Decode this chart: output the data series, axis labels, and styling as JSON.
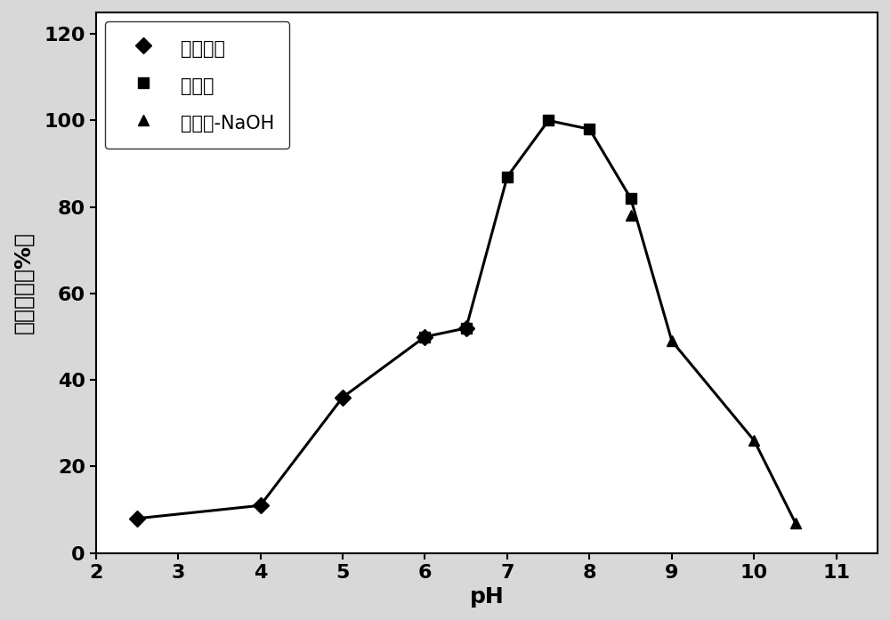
{
  "series": [
    {
      "label": "柠橜酸鉡",
      "x": [
        2.5,
        4.0,
        5.0,
        6.0,
        6.5
      ],
      "y": [
        8,
        11,
        36,
        50,
        52
      ],
      "marker": "D",
      "markersize": 9
    },
    {
      "label": "磷酸鉡",
      "x": [
        6.0,
        6.5,
        7.0,
        7.5,
        8.0,
        8.5
      ],
      "y": [
        50,
        52,
        87,
        100,
        98,
        82
      ],
      "marker": "s",
      "markersize": 9
    },
    {
      "label": "甘氨酸-NaOH",
      "x": [
        8.5,
        9.0,
        10.0,
        10.5
      ],
      "y": [
        78,
        49,
        26,
        7
      ],
      "marker": "^",
      "markersize": 9
    }
  ],
  "all_x": [
    2.5,
    4.0,
    5.0,
    6.0,
    6.5,
    7.0,
    7.5,
    8.0,
    8.5,
    9.0,
    10.0,
    10.5
  ],
  "all_y": [
    8,
    11,
    36,
    50,
    52,
    87,
    100,
    98,
    82,
    49,
    26,
    7
  ],
  "xlabel": "pH",
  "ylabel": "相对酶活（%）",
  "xlim": [
    2.0,
    11.5
  ],
  "ylim": [
    0,
    125
  ],
  "xticks": [
    2,
    3,
    4,
    5,
    6,
    7,
    8,
    9,
    10,
    11
  ],
  "yticks": [
    0,
    20,
    40,
    60,
    80,
    100,
    120
  ],
  "line_color": "#000000",
  "marker_color": "#000000",
  "background_color": "#d8d8d8",
  "plot_background": "#ffffff",
  "legend_loc": "upper left",
  "font_size": 15,
  "label_font_size": 18,
  "tick_font_size": 16
}
